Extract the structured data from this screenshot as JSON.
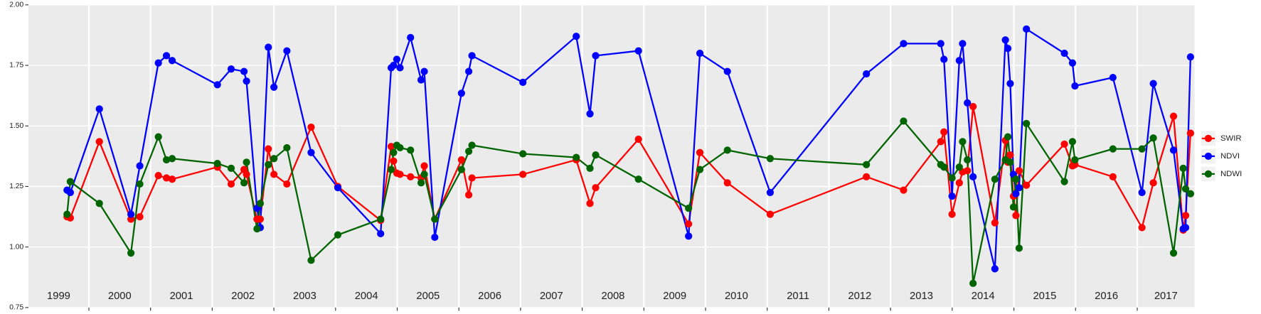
{
  "chart_data": {
    "type": "line",
    "x": [
      1999.646,
      1999.699,
      2000.17,
      2000.682,
      2000.826,
      2001.127,
      2001.258,
      2001.35,
      2002.084,
      2002.307,
      2002.516,
      2002.556,
      2002.726,
      2002.779,
      2002.91,
      2003.001,
      2003.211,
      2003.604,
      2004.037,
      2004.731,
      2004.902,
      2004.941,
      2004.993,
      2005.046,
      2005.216,
      2005.387,
      2005.439,
      2005.609,
      2006.042,
      2006.16,
      2006.212,
      2007.038,
      2007.903,
      2008.126,
      2008.218,
      2008.912,
      2009.725,
      2009.908,
      2010.354,
      2011.048,
      2012.608,
      2013.211,
      2013.814,
      2013.866,
      2013.997,
      2014.115,
      2014.168,
      2014.246,
      2014.338,
      2014.692,
      2014.862,
      2014.902,
      2014.941,
      2014.993,
      2015.033,
      2015.085,
      2015.203,
      2015.819,
      2015.95,
      2015.99,
      2016.606,
      2017.077,
      2017.261,
      2017.589,
      2017.746,
      2017.785,
      2017.864
    ],
    "series": [
      {
        "name": "SWIR",
        "color": "#ff0000",
        "values": [
          1.125,
          1.12,
          1.435,
          1.115,
          1.125,
          1.295,
          1.285,
          1.28,
          1.33,
          1.26,
          1.32,
          1.3,
          1.115,
          1.115,
          1.405,
          1.3,
          1.26,
          1.495,
          1.25,
          1.11,
          1.415,
          1.355,
          1.305,
          1.3,
          1.29,
          1.285,
          1.335,
          1.115,
          1.36,
          1.215,
          1.285,
          1.3,
          1.36,
          1.18,
          1.245,
          1.445,
          1.095,
          1.39,
          1.265,
          1.135,
          1.29,
          1.235,
          1.435,
          1.475,
          1.135,
          1.265,
          1.31,
          1.315,
          1.58,
          1.1,
          1.44,
          1.35,
          1.38,
          1.21,
          1.13,
          1.315,
          1.255,
          1.425,
          1.335,
          1.34,
          1.29,
          1.08,
          1.265,
          1.54,
          1.07,
          1.13,
          1.47
        ]
      },
      {
        "name": "NDVI",
        "color": "#0000ff",
        "values": [
          1.235,
          1.225,
          1.57,
          1.135,
          1.335,
          1.76,
          1.79,
          1.77,
          1.67,
          1.735,
          1.725,
          1.685,
          1.16,
          1.08,
          1.825,
          1.66,
          1.81,
          1.39,
          1.245,
          1.055,
          1.74,
          1.75,
          1.775,
          1.74,
          1.865,
          1.69,
          1.725,
          1.04,
          1.635,
          1.725,
          1.79,
          1.68,
          1.87,
          1.55,
          1.79,
          1.81,
          1.045,
          1.8,
          1.725,
          1.225,
          1.715,
          1.84,
          1.84,
          1.775,
          1.21,
          1.77,
          1.84,
          1.595,
          1.29,
          0.91,
          1.855,
          1.82,
          1.675,
          1.3,
          1.22,
          1.245,
          1.9,
          1.8,
          1.76,
          1.665,
          1.7,
          1.225,
          1.675,
          1.4,
          1.075,
          1.08,
          1.785
        ]
      },
      {
        "name": "NDWI",
        "color": "#006400",
        "values": [
          1.135,
          1.27,
          1.18,
          0.975,
          1.26,
          1.455,
          1.36,
          1.365,
          1.345,
          1.325,
          1.265,
          1.35,
          1.075,
          1.18,
          1.34,
          1.365,
          1.41,
          0.945,
          1.05,
          1.115,
          1.32,
          1.39,
          1.42,
          1.41,
          1.4,
          1.265,
          1.3,
          1.115,
          1.32,
          1.395,
          1.42,
          1.385,
          1.37,
          1.325,
          1.38,
          1.28,
          1.16,
          1.32,
          1.4,
          1.365,
          1.34,
          1.52,
          1.34,
          1.33,
          1.285,
          1.33,
          1.435,
          1.36,
          0.85,
          1.28,
          1.36,
          1.455,
          1.35,
          1.165,
          1.28,
          0.995,
          1.51,
          1.27,
          1.435,
          1.36,
          1.405,
          1.405,
          1.45,
          0.975,
          1.325,
          1.24,
          1.22
        ]
      }
    ],
    "xlim": [
      1999.02,
      2017.93
    ],
    "xticks": [
      2000,
      2001,
      2002,
      2003,
      2004,
      2005,
      2006,
      2007,
      2008,
      2009,
      2010,
      2011,
      2012,
      2013,
      2014,
      2015,
      2016,
      2017
    ],
    "year_labels": [
      "1999",
      "2000",
      "2001",
      "2002",
      "2003",
      "2004",
      "2005",
      "2006",
      "2007",
      "2008",
      "2009",
      "2010",
      "2011",
      "2012",
      "2013",
      "2014",
      "2015",
      "2016",
      "2017"
    ],
    "ylim": [
      0.75,
      2.0
    ],
    "yticks": [
      {
        "value": 0.75,
        "label": "0.75"
      },
      {
        "value": 1.0,
        "label": "1.00"
      },
      {
        "value": 1.25,
        "label": "1.25"
      },
      {
        "value": 1.5,
        "label": "1.50"
      },
      {
        "value": 1.75,
        "label": "1.75"
      },
      {
        "value": 2.0,
        "label": "2.00"
      }
    ],
    "grid": true,
    "legend": "right"
  }
}
